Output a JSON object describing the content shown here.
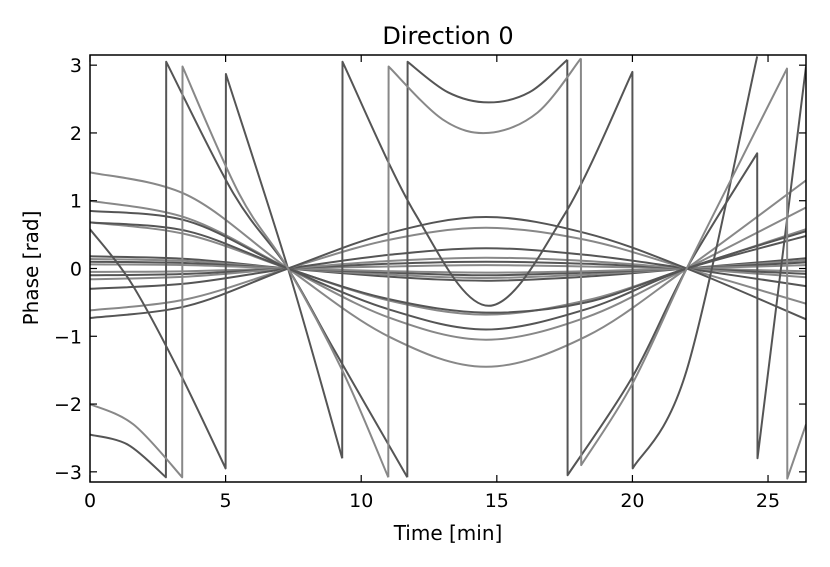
{
  "chart_data": {
    "type": "line",
    "title": "Direction 0",
    "xlabel": "Time [min]",
    "ylabel": "Phase [rad]",
    "xlim": [
      0,
      26.4
    ],
    "ylim": [
      -3.15,
      3.15
    ],
    "x_ticks": [
      0,
      5,
      10,
      15,
      20,
      25
    ],
    "x_tick_labels": [
      "0",
      "5",
      "10",
      "15",
      "20",
      "25"
    ],
    "y_ticks": [
      -3,
      -2,
      -1,
      0,
      1,
      2,
      3
    ],
    "y_tick_labels": [
      "−3",
      "−2",
      "−1",
      "0",
      "1",
      "2",
      "3"
    ],
    "grid": false,
    "legend": "none",
    "colors": {
      "dark": "#555555",
      "light": "#888888"
    },
    "series": [
      {
        "shade": "dark",
        "x": [
          0,
          3.6,
          7.3,
          11.0,
          14.6,
          18.3,
          22.0,
          26.4
        ],
        "y": [
          0.18,
          0.14,
          0.0,
          -0.12,
          -0.18,
          -0.12,
          0.0,
          0.15
        ]
      },
      {
        "shade": "light",
        "x": [
          0,
          3.6,
          7.3,
          11.0,
          14.6,
          18.3,
          22.0,
          26.4
        ],
        "y": [
          0.14,
          0.11,
          0.0,
          -0.09,
          -0.14,
          -0.09,
          0.0,
          0.12
        ]
      },
      {
        "shade": "dark",
        "x": [
          0,
          3.6,
          7.3,
          11.0,
          14.6,
          18.3,
          22.0,
          26.4
        ],
        "y": [
          0.1,
          0.08,
          0.0,
          -0.06,
          -0.1,
          -0.06,
          0.0,
          0.09
        ]
      },
      {
        "shade": "light",
        "x": [
          0,
          3.6,
          7.3,
          11.0,
          14.6,
          18.3,
          22.0,
          26.4
        ],
        "y": [
          0.06,
          0.05,
          0.0,
          -0.04,
          -0.06,
          -0.04,
          0.0,
          0.05
        ]
      },
      {
        "shade": "light",
        "x": [
          0,
          3.6,
          7.3,
          11.0,
          14.6,
          18.3,
          22.0,
          26.4
        ],
        "y": [
          -0.05,
          -0.04,
          0.0,
          0.03,
          0.05,
          0.03,
          0.0,
          -0.04
        ]
      },
      {
        "shade": "dark",
        "x": [
          0,
          3.6,
          7.3,
          11.0,
          14.6,
          18.3,
          22.0,
          26.4
        ],
        "y": [
          -0.1,
          -0.08,
          0.0,
          0.07,
          0.1,
          0.07,
          0.0,
          -0.08
        ]
      },
      {
        "shade": "light",
        "x": [
          0,
          3.6,
          7.3,
          11.0,
          14.6,
          18.3,
          22.0,
          26.4
        ],
        "y": [
          -0.16,
          -0.12,
          0.0,
          0.11,
          0.16,
          0.11,
          0.0,
          -0.13
        ]
      },
      {
        "shade": "dark",
        "x": [
          0,
          3.6,
          7.3,
          11.0,
          14.6,
          18.3,
          22.0,
          26.4
        ],
        "y": [
          -0.3,
          -0.22,
          0.0,
          0.2,
          0.3,
          0.2,
          0.0,
          -0.26
        ]
      },
      {
        "shade": "light",
        "x": [
          0,
          3.6,
          7.3,
          11.0,
          14.6,
          18.3,
          22.0,
          26.4
        ],
        "y": [
          -0.62,
          -0.45,
          0.0,
          0.42,
          0.6,
          0.42,
          0.0,
          -0.52
        ]
      },
      {
        "shade": "dark",
        "x": [
          0,
          3.6,
          7.3,
          11.0,
          14.6,
          18.3,
          22.0,
          26.4
        ],
        "y": [
          -0.73,
          -0.55,
          0.0,
          0.52,
          0.76,
          0.52,
          0.0,
          -0.75
        ]
      },
      {
        "shade": "light",
        "x": [
          0,
          3.6,
          7.3,
          11.0,
          14.6,
          18.3,
          22.0,
          26.4
        ],
        "y": [
          0.68,
          0.5,
          0.0,
          -0.47,
          -0.68,
          -0.47,
          0.0,
          0.58
        ]
      },
      {
        "shade": "dark",
        "x": [
          0,
          3.6,
          7.3,
          11.0,
          14.6,
          18.3,
          22.0,
          26.4
        ],
        "y": [
          0.68,
          0.55,
          0.0,
          -0.45,
          -0.65,
          -0.5,
          0.0,
          0.48
        ]
      },
      {
        "shade": "light",
        "x": [
          0,
          3.6,
          7.3,
          11.0,
          14.6,
          18.3,
          22.0,
          26.4
        ],
        "y": [
          1.0,
          0.74,
          0.0,
          -0.72,
          -1.05,
          -0.72,
          0.0,
          0.9
        ]
      },
      {
        "shade": "light",
        "x": [
          0,
          3.6,
          7.3,
          11.0,
          14.6,
          18.3,
          22.0,
          26.4
        ],
        "y": [
          1.42,
          1.08,
          0.0,
          -1.0,
          -1.45,
          -1.0,
          0.0,
          1.3
        ]
      },
      {
        "shade": "dark",
        "x": [
          0,
          3.6,
          7.3,
          11.0,
          14.6,
          18.3,
          22.0,
          26.4
        ],
        "y": [
          0.85,
          0.7,
          0.0,
          -0.6,
          -0.9,
          -0.6,
          0.0,
          0.55
        ]
      },
      {
        "shade": "dark",
        "x": [
          0,
          1.5,
          3.2,
          5.0,
          5.01,
          7.3,
          9.3
        ],
        "y": [
          0.58,
          -0.2,
          -1.45,
          -2.95,
          2.87,
          0.0,
          -2.8
        ]
      },
      {
        "shade": "dark",
        "x": [
          9.3,
          9.31,
          12.0,
          14.7,
          17.5,
          20.0,
          20.01,
          22.0,
          24.6
        ],
        "y": [
          -2.8,
          3.05,
          0.8,
          -0.55,
          0.8,
          2.9,
          -2.95,
          -1.5,
          3.13
        ]
      },
      {
        "shade": "dark",
        "x": [
          0,
          1.4,
          2.8,
          2.81,
          5.3,
          7.3,
          9.0,
          11.7
        ],
        "y": [
          -2.45,
          -2.6,
          -3.08,
          3.05,
          1.1,
          0.0,
          -1.2,
          -3.08
        ]
      },
      {
        "shade": "dark",
        "x": [
          11.7,
          11.71,
          13.2,
          14.7,
          16.2,
          17.6
        ],
        "y": [
          -3.08,
          3.05,
          2.6,
          2.45,
          2.6,
          3.08
        ]
      },
      {
        "shade": "dark",
        "x": [
          17.6,
          17.61,
          20.0,
          22.0,
          24.6,
          24.61,
          26.4
        ],
        "y": [
          3.08,
          -3.05,
          -1.6,
          0.0,
          1.7,
          -2.8,
          2.98
        ]
      },
      {
        "shade": "light",
        "x": [
          0,
          1.6,
          3.4,
          3.41,
          5.5,
          7.3,
          9.3,
          11.0
        ],
        "y": [
          -2.0,
          -2.3,
          -3.08,
          2.98,
          1.1,
          0.0,
          -1.5,
          -3.08
        ]
      },
      {
        "shade": "light",
        "x": [
          11.0,
          11.01,
          13.0,
          14.7,
          16.5,
          18.1
        ],
        "y": [
          -3.08,
          2.98,
          2.2,
          2.0,
          2.3,
          3.1
        ]
      },
      {
        "shade": "light",
        "x": [
          18.1,
          18.11,
          20.0,
          22.0,
          24.0,
          25.7,
          25.71,
          26.4
        ],
        "y": [
          3.1,
          -2.9,
          -1.7,
          0.0,
          1.6,
          2.95,
          -3.1,
          -2.3
        ]
      }
    ]
  }
}
